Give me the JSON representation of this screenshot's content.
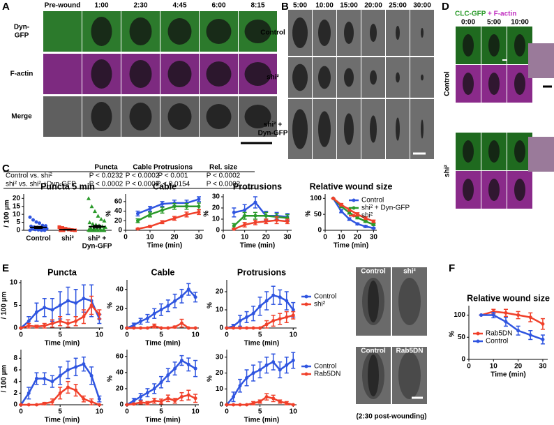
{
  "figure": {
    "A": {
      "letter": "A",
      "times": [
        "Pre-wound",
        "1:00",
        "2:30",
        "4:45",
        "6:00",
        "8:15"
      ],
      "rows": [
        [
          "Dyn-",
          "GFP"
        ],
        [
          "F-actin"
        ],
        [
          "Merge"
        ]
      ]
    },
    "B": {
      "letter": "B",
      "times": [
        "5:00",
        "10:00",
        "15:00",
        "20:00",
        "25:00",
        "30:00"
      ],
      "rows": [
        [
          "Control"
        ],
        [
          "shi²"
        ],
        [
          "shi² +",
          "Dyn-GFP"
        ]
      ]
    },
    "C": {
      "letter": "C",
      "table": {
        "header": [
          "Puncta",
          "Cable",
          "Protrusions",
          "Rel. size"
        ],
        "rows": [
          [
            "Control vs. shi²",
            "P < 0.0232",
            "P < 0.0002",
            "P < 0.001",
            "P < 0.0002"
          ],
          [
            "shi² vs. shi² +Dyn-GFP",
            "P < 0.0002",
            "P < 0.0002",
            "P < 0.0154",
            "P < 0.0002"
          ]
        ]
      }
    },
    "D": {
      "letter": "D",
      "title": [
        "CLC-GFP",
        "+ F-actin"
      ],
      "times": [
        "0:00",
        "5:00",
        "10:00"
      ],
      "rows": [
        "Control",
        "shi²"
      ]
    },
    "E": {
      "letter": "E",
      "image_labels": [
        "Control",
        "shi²",
        "Control",
        "Rab5DN"
      ],
      "caption": "(2:30 post-wounding)"
    },
    "F": {
      "letter": "F"
    }
  },
  "chart_data": [
    {
      "type": "dot",
      "title": "Puncta 5 min",
      "y_label": "/ 100 µm",
      "categories": [
        [
          "Control"
        ],
        [
          "shi²"
        ],
        [
          "shi² +",
          "Dyn-GFP"
        ]
      ],
      "colors": [
        "#2f55e0",
        "#f0402a",
        "#2a9a2a"
      ],
      "points": [
        [
          8.2,
          6.5,
          5.2,
          4.5,
          3,
          2.8,
          2.5,
          2,
          1.8,
          1.5,
          1.2,
          1,
          0.8,
          0.5,
          0.3,
          0,
          0,
          0
        ],
        [
          2,
          1.5,
          1,
          0.5,
          0.2,
          0,
          0,
          0
        ],
        [
          20,
          15,
          12,
          9,
          7,
          6,
          5,
          4,
          3.5,
          3,
          2.5,
          2,
          1.5,
          1.2,
          1,
          0.8,
          0.5,
          0.3,
          0,
          0,
          0,
          0,
          0,
          0
        ]
      ],
      "means": [
        1.8,
        0.4,
        2.3
      ],
      "errors": [
        0.6,
        0.2,
        0.8
      ],
      "ylim": [
        0,
        21
      ],
      "yticks": [
        0,
        5,
        10,
        15,
        20
      ]
    },
    {
      "type": "line",
      "title": "Cable",
      "x_label": "Time (min)",
      "y_label": "%",
      "x": [
        5,
        10,
        15,
        20,
        25,
        30
      ],
      "xlim": [
        0,
        32
      ],
      "xticks": [
        0,
        10,
        20,
        30
      ],
      "ylim": [
        0,
        70
      ],
      "yticks": [
        0,
        20,
        40,
        60
      ],
      "series": [
        {
          "name": "Control",
          "color": "#2f55e0",
          "values": [
            35,
            45,
            55,
            57,
            57,
            65
          ],
          "errors": [
            5,
            5,
            5,
            6,
            6,
            5
          ]
        },
        {
          "name": "shi² + Dyn-GFP",
          "color": "#2a9a2a",
          "values": [
            20,
            33,
            42,
            50,
            50,
            50
          ],
          "errors": [
            4,
            5,
            6,
            6,
            6,
            7
          ]
        },
        {
          "name": "shi²",
          "color": "#f0402a",
          "values": [
            3,
            8,
            17,
            25,
            33,
            38
          ],
          "errors": [
            1,
            2,
            3,
            4,
            5,
            5
          ]
        }
      ]
    },
    {
      "type": "line",
      "title": "Protrusions",
      "x_label": "Time (min)",
      "y_label": "%",
      "x": [
        5,
        10,
        15,
        20,
        25,
        30
      ],
      "xlim": [
        0,
        32
      ],
      "xticks": [
        0,
        10,
        20,
        30
      ],
      "ylim": [
        0,
        30
      ],
      "yticks": [
        0,
        10,
        20,
        30
      ],
      "series": [
        {
          "name": "Control",
          "color": "#2f55e0",
          "values": [
            16,
            18,
            25,
            13,
            13,
            12
          ],
          "errors": [
            4,
            5,
            5,
            4,
            3,
            3
          ]
        },
        {
          "name": "shi² + Dyn-GFP",
          "color": "#2a9a2a",
          "values": [
            4,
            13,
            13,
            13,
            12,
            11
          ],
          "errors": [
            2,
            3,
            3,
            3,
            3,
            3
          ]
        },
        {
          "name": "shi²",
          "color": "#f0402a",
          "values": [
            1,
            5,
            7,
            8,
            9,
            8
          ],
          "errors": [
            0.5,
            2,
            2,
            2,
            3,
            2
          ]
        }
      ]
    },
    {
      "type": "line",
      "title": "Relative wound size",
      "x_label": "Time (min)",
      "y_label": "%",
      "x": [
        5,
        10,
        15,
        20,
        25,
        30
      ],
      "xlim": [
        0,
        32
      ],
      "xticks": [
        0,
        10,
        20,
        30
      ],
      "ylim": [
        0,
        105
      ],
      "yticks": [
        0,
        50,
        100
      ],
      "legend": "upper right",
      "series": [
        {
          "name": "Control",
          "color": "#2f55e0",
          "values": [
            100,
            60,
            35,
            20,
            12,
            7
          ],
          "errors": [
            0,
            5,
            4,
            3,
            3,
            2
          ]
        },
        {
          "name": "shi² + Dyn-GFP",
          "color": "#2a9a2a",
          "values": [
            100,
            75,
            55,
            40,
            28,
            18
          ],
          "errors": [
            0,
            4,
            4,
            4,
            3,
            3
          ]
        },
        {
          "name": "shi²",
          "color": "#f0402a",
          "values": [
            100,
            80,
            65,
            50,
            38,
            28
          ],
          "errors": [
            0,
            4,
            5,
            5,
            4,
            4
          ]
        }
      ]
    },
    {
      "type": "line",
      "title": "Puncta",
      "x_label": "Time (min)",
      "y_label": "/ 100 µm",
      "x": [
        0,
        1,
        2,
        3,
        4,
        5,
        6,
        7,
        8,
        9,
        10
      ],
      "xlim": [
        0,
        10.5
      ],
      "xticks": [
        0,
        5,
        10
      ],
      "ylim": [
        0,
        10
      ],
      "yticks": [
        0,
        5,
        10
      ],
      "series": [
        {
          "name": "Control",
          "color": "#2f55e0",
          "values": [
            0,
            1.5,
            3.5,
            4.5,
            4,
            5,
            6,
            5.5,
            6.5,
            6,
            2
          ],
          "errors": [
            0,
            1,
            2,
            2,
            2.5,
            3,
            3,
            3,
            3,
            3.5,
            1
          ]
        },
        {
          "name": "shi²",
          "color": "#f0402a",
          "values": [
            0,
            0.5,
            0.3,
            0.5,
            1,
            1.5,
            1,
            1.5,
            2.5,
            5,
            3
          ],
          "errors": [
            0,
            0.5,
            0.3,
            0.5,
            0.8,
            1,
            0.8,
            1,
            1.5,
            2,
            1
          ]
        }
      ]
    },
    {
      "type": "line",
      "title": "Cable",
      "x_label": "Time (min)",
      "y_label": "%",
      "x": [
        0,
        1,
        2,
        3,
        4,
        5,
        6,
        7,
        8,
        9,
        10
      ],
      "xlim": [
        0,
        10.5
      ],
      "xticks": [
        0,
        5,
        10
      ],
      "ylim": [
        0,
        47
      ],
      "yticks": [
        0,
        20,
        40
      ],
      "series": [
        {
          "name": "Control",
          "color": "#2f55e0",
          "values": [
            0,
            3,
            7,
            10,
            15,
            19,
            23,
            28,
            33,
            40,
            32
          ],
          "errors": [
            0,
            2,
            3,
            4,
            5,
            6,
            6,
            7,
            7,
            6,
            5
          ]
        },
        {
          "name": "shi²",
          "color": "#f0402a",
          "values": [
            0,
            0,
            0,
            0,
            2,
            0,
            0,
            1,
            5,
            0,
            0
          ],
          "errors": [
            0,
            0,
            0,
            0,
            2,
            0,
            0,
            1,
            4,
            0,
            0
          ]
        }
      ]
    },
    {
      "type": "line",
      "title": "Protrusions",
      "x_label": "Time (min)",
      "y_label": "%",
      "x": [
        0,
        1,
        2,
        3,
        4,
        5,
        6,
        7,
        8,
        9,
        10
      ],
      "xlim": [
        0,
        10.5
      ],
      "xticks": [
        0,
        5,
        10
      ],
      "ylim": [
        0,
        25
      ],
      "yticks": [
        0,
        10,
        20
      ],
      "legend": "right",
      "series": [
        {
          "name": "Control",
          "color": "#2f55e0",
          "values": [
            0,
            1,
            4,
            6,
            8,
            12,
            15,
            18,
            17,
            15,
            10
          ],
          "errors": [
            0,
            1,
            3,
            3,
            4,
            5,
            5,
            5,
            4,
            5,
            4
          ]
        },
        {
          "name": "shi²",
          "color": "#f0402a",
          "values": [
            0,
            0,
            0,
            0,
            0,
            0,
            2,
            4,
            5,
            6,
            7
          ],
          "errors": [
            0,
            0,
            0,
            0,
            0,
            0,
            2,
            3,
            3,
            3,
            2
          ]
        }
      ]
    },
    {
      "type": "line",
      "x_label": "Time (min)",
      "y_label": "/ 100 µm",
      "x": [
        0,
        1,
        2,
        3,
        4,
        5,
        6,
        7,
        8,
        9,
        10
      ],
      "xlim": [
        0,
        10.5
      ],
      "xticks": [
        0,
        5,
        10
      ],
      "ylim": [
        0,
        9
      ],
      "yticks": [
        0,
        2,
        4,
        6,
        8
      ],
      "series": [
        {
          "name": "Control",
          "color": "#2f55e0",
          "values": [
            0,
            2,
            4.5,
            4.5,
            4,
            5,
            6,
            6.5,
            7,
            5,
            1
          ],
          "errors": [
            0,
            1,
            1,
            1,
            1,
            1.5,
            1.5,
            1.5,
            1.2,
            1.5,
            0.5
          ]
        },
        {
          "name": "Rab5DN",
          "color": "#f0402a",
          "values": [
            0,
            0,
            0,
            0.2,
            0.5,
            2,
            3,
            2.5,
            1,
            0.5,
            0
          ],
          "errors": [
            0,
            0,
            0,
            0.2,
            0.5,
            1,
            1,
            1,
            0.5,
            0.5,
            0
          ]
        }
      ]
    },
    {
      "type": "line",
      "x_label": "Time (min)",
      "y_label": "%",
      "x": [
        0,
        1,
        2,
        3,
        4,
        5,
        6,
        7,
        8,
        9,
        10
      ],
      "xlim": [
        0,
        10.5
      ],
      "xticks": [
        0,
        5,
        10
      ],
      "ylim": [
        0,
        65
      ],
      "yticks": [
        0,
        20,
        40,
        60
      ],
      "series": [
        {
          "name": "Control",
          "color": "#2f55e0",
          "values": [
            0,
            5,
            10,
            15,
            20,
            28,
            37,
            45,
            55,
            50,
            45
          ],
          "errors": [
            0,
            3,
            4,
            5,
            6,
            7,
            8,
            8,
            6,
            8,
            10
          ]
        },
        {
          "name": "Rab5DN",
          "color": "#f0402a",
          "values": [
            0,
            1,
            3,
            2,
            5,
            4,
            8,
            5,
            10,
            12,
            8
          ],
          "errors": [
            0,
            1,
            2,
            2,
            3,
            3,
            4,
            3,
            5,
            6,
            5
          ]
        }
      ]
    },
    {
      "type": "line",
      "x_label": "Time (min)",
      "y_label": "%",
      "x": [
        0,
        1,
        2,
        3,
        4,
        5,
        6,
        7,
        8,
        9,
        10
      ],
      "xlim": [
        0,
        10.5
      ],
      "xticks": [
        0,
        5,
        10
      ],
      "ylim": [
        0,
        33
      ],
      "yticks": [
        0,
        10,
        20,
        30
      ],
      "legend": "right",
      "series": [
        {
          "name": "Control",
          "color": "#2f55e0",
          "values": [
            0,
            5,
            12,
            17,
            20,
            22,
            25,
            27,
            22,
            25,
            28
          ],
          "errors": [
            0,
            3,
            4,
            5,
            5,
            5,
            5,
            5,
            5,
            5,
            5
          ]
        },
        {
          "name": "Rab5DN",
          "color": "#f0402a",
          "values": [
            0,
            0,
            0,
            0,
            1,
            2,
            5,
            4,
            2,
            1,
            0
          ],
          "errors": [
            0,
            0,
            0,
            0,
            1,
            1,
            2,
            2,
            1,
            1,
            0
          ]
        }
      ]
    },
    {
      "type": "line",
      "title": "Relative wound size",
      "x_label": "Time (min)",
      "y_label": "%",
      "x": [
        5,
        10,
        15,
        20,
        25,
        30
      ],
      "xlim": [
        0,
        32
      ],
      "xticks": [
        0,
        10,
        20,
        30
      ],
      "ylim": [
        0,
        115
      ],
      "yticks": [
        0,
        50,
        100
      ],
      "legend": "lower left",
      "series": [
        {
          "name": "Rab5DN",
          "color": "#f0402a",
          "values": [
            100,
            108,
            105,
            100,
            95,
            80
          ],
          "errors": [
            0,
            5,
            8,
            8,
            10,
            12
          ]
        },
        {
          "name": "Control",
          "color": "#2f55e0",
          "values": [
            100,
            100,
            85,
            65,
            55,
            45
          ],
          "errors": [
            0,
            6,
            10,
            10,
            10,
            10
          ]
        }
      ]
    }
  ]
}
